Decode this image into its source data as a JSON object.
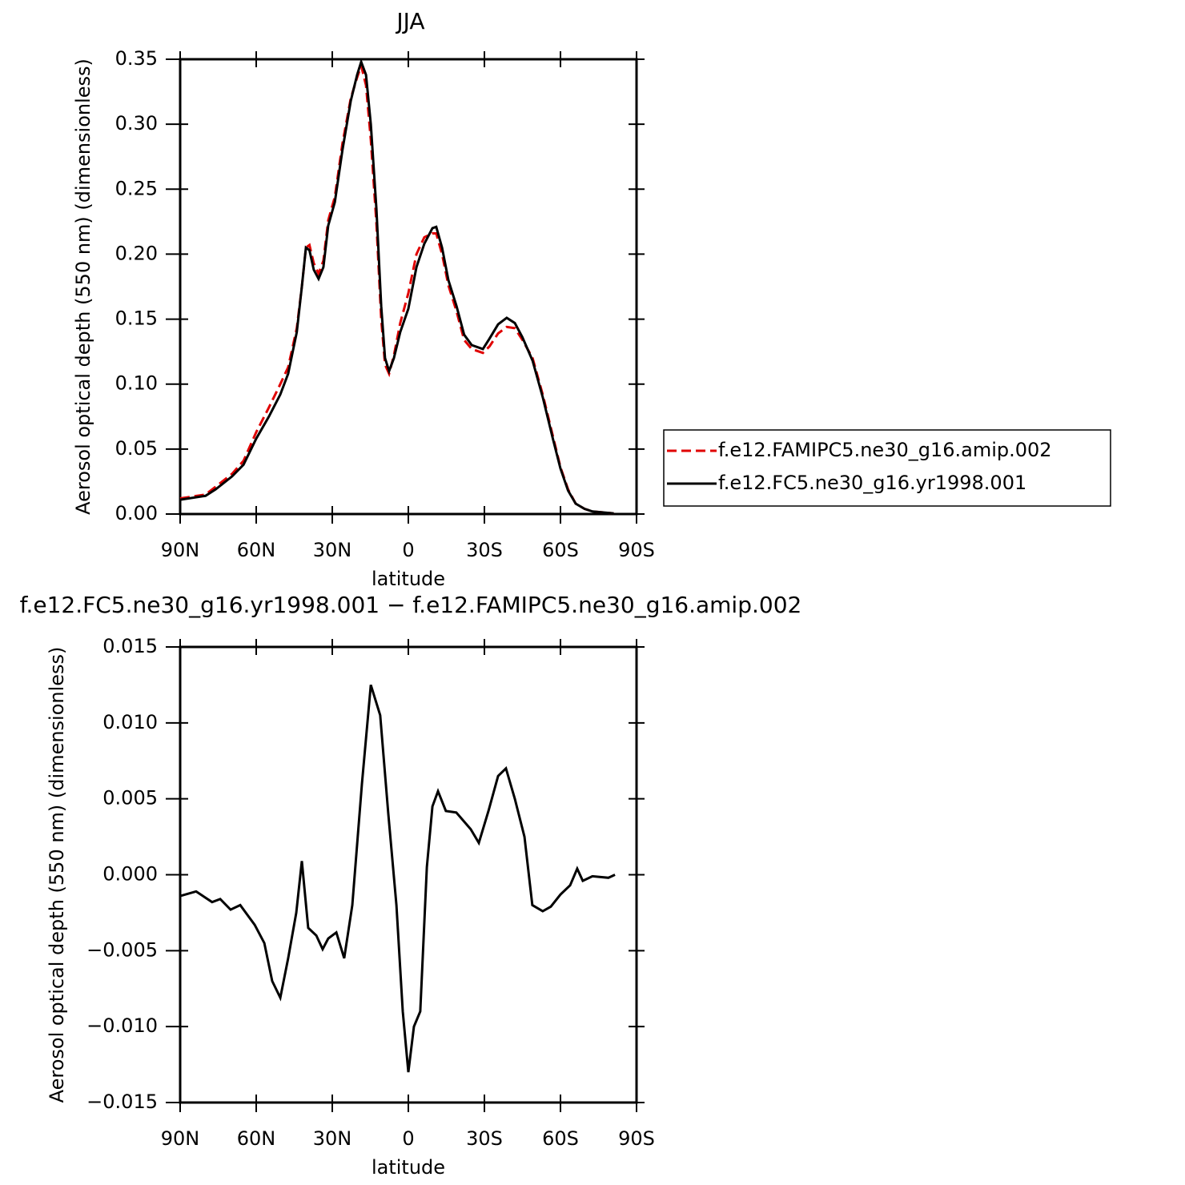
{
  "chart_data": [
    {
      "type": "line",
      "title": "JJA",
      "xlabel": "latitude",
      "ylabel": "Aerosol optical depth (550 nm) (dimensionless)",
      "x": [
        90,
        80,
        76,
        69.5,
        65,
        60,
        55,
        50.5,
        47.4,
        44,
        42,
        40.4,
        39,
        37.3,
        35.4,
        33.5,
        31.6,
        29,
        26,
        22.7,
        20.2,
        18.6,
        16.7,
        14.8,
        12.6,
        10.7,
        9.2,
        7.6,
        5.7,
        3.2,
        0,
        -3.2,
        -6.3,
        -9.5,
        -11,
        -13.3,
        -15.8,
        -19,
        -22,
        -25,
        -29.4,
        -32,
        -35.4,
        -38.8,
        -42,
        -45,
        -49,
        -53,
        -57,
        -60,
        -63,
        -66,
        -69.5,
        -72.6,
        -81
      ],
      "series": [
        {
          "name": "f.e12.FAMIPC5.ne30_g16.amip.002",
          "color": "#e00000",
          "linestyle": "dashed",
          "values": [
            0.012,
            0.015,
            0.021,
            0.031,
            0.041,
            0.063,
            0.082,
            0.1,
            0.113,
            0.143,
            0.175,
            0.205,
            0.207,
            0.193,
            0.185,
            0.195,
            0.226,
            0.244,
            0.285,
            0.32,
            0.336,
            0.345,
            0.33,
            0.288,
            0.224,
            0.15,
            0.115,
            0.108,
            0.122,
            0.147,
            0.17,
            0.2,
            0.213,
            0.216,
            0.216,
            0.2,
            0.176,
            0.156,
            0.134,
            0.127,
            0.124,
            0.129,
            0.139,
            0.144,
            0.143,
            0.134,
            0.12,
            0.092,
            0.06,
            0.036,
            0.019,
            0.008,
            0.004,
            0.002,
            0.0005
          ]
        },
        {
          "name": "f.e12.FC5.ne30_g16.yr1998.001",
          "color": "#000000",
          "linestyle": "solid",
          "values": [
            0.011,
            0.014,
            0.019,
            0.029,
            0.038,
            0.058,
            0.075,
            0.092,
            0.108,
            0.14,
            0.175,
            0.205,
            0.203,
            0.188,
            0.181,
            0.19,
            0.222,
            0.24,
            0.28,
            0.318,
            0.338,
            0.348,
            0.338,
            0.3,
            0.235,
            0.16,
            0.12,
            0.11,
            0.12,
            0.14,
            0.158,
            0.19,
            0.208,
            0.22,
            0.221,
            0.205,
            0.18,
            0.16,
            0.138,
            0.13,
            0.127,
            0.135,
            0.146,
            0.151,
            0.147,
            0.136,
            0.118,
            0.09,
            0.058,
            0.035,
            0.018,
            0.008,
            0.004,
            0.002,
            0.0005
          ]
        }
      ],
      "xlim": [
        90,
        -90
      ],
      "xticks": [
        {
          "value": 90,
          "label": "90N"
        },
        {
          "value": 60,
          "label": "60N"
        },
        {
          "value": 30,
          "label": "30N"
        },
        0,
        {
          "value": -30,
          "label": "30S"
        },
        {
          "value": -60,
          "label": "60S"
        },
        {
          "value": -90,
          "label": "90S"
        }
      ],
      "ylim": [
        0,
        0.35
      ],
      "yticks": [
        {
          "value": 0,
          "label": "0.00"
        },
        0.05,
        {
          "value": 0.1,
          "label": "0.10"
        },
        0.15,
        {
          "value": 0.2,
          "label": "0.20"
        },
        0.25,
        {
          "value": 0.3,
          "label": "0.30"
        },
        0.35
      ],
      "legend": "right"
    },
    {
      "type": "line",
      "title": "f.e12.FC5.ne30_g16.yr1998.001 − f.e12.FAMIPC5.ne30_g16.amip.002",
      "xlabel": "latitude",
      "ylabel": "Aerosol optical depth (550 nm) (dimensionless)",
      "x": [
        90,
        83.7,
        77.4,
        74.2,
        70.1,
        66.3,
        60.6,
        56.8,
        53.7,
        50.5,
        47.4,
        44.2,
        42,
        39.5,
        36.3,
        33.8,
        31.6,
        28.4,
        25.3,
        22.1,
        18.3,
        14.8,
        11.1,
        7.9,
        4.7,
        2.2,
        0,
        -2.2,
        -4.7,
        -7.3,
        -9.5,
        -11.7,
        -14.8,
        -18.9,
        -24.6,
        -27.8,
        -31.6,
        -35.4,
        -38.5,
        -42,
        -45.8,
        -48.9,
        -53,
        -56.2,
        -60,
        -63.8,
        -66.6,
        -68.8,
        -72.6,
        -78.9,
        -81.5
      ],
      "series": [
        {
          "color": "#000000",
          "linestyle": "solid",
          "values": [
            -0.0014,
            -0.0011,
            -0.0018,
            -0.0016,
            -0.0023,
            -0.002,
            -0.0033,
            -0.0045,
            -0.007,
            -0.0081,
            -0.0055,
            -0.0025,
            0.0009,
            -0.0035,
            -0.004,
            -0.0049,
            -0.0042,
            -0.0038,
            -0.0055,
            -0.002,
            0.006,
            0.0125,
            0.0105,
            0.004,
            -0.002,
            -0.009,
            -0.013,
            -0.01,
            -0.009,
            0.0005,
            0.0045,
            0.0055,
            0.0042,
            0.0041,
            0.003,
            0.0021,
            0.0042,
            0.0065,
            0.007,
            0.005,
            0.0025,
            -0.002,
            -0.0024,
            -0.0021,
            -0.0013,
            -0.0007,
            0.0004,
            -0.0004,
            -0.0001,
            -0.0002,
            0
          ]
        }
      ],
      "xlim": [
        90,
        -90
      ],
      "xticks": [
        {
          "value": 90,
          "label": "90N"
        },
        {
          "value": 60,
          "label": "60N"
        },
        {
          "value": 30,
          "label": "30N"
        },
        0,
        {
          "value": -30,
          "label": "30S"
        },
        {
          "value": -60,
          "label": "60S"
        },
        {
          "value": -90,
          "label": "90S"
        }
      ],
      "ylim": [
        -0.015,
        0.015
      ],
      "yticks": [
        {
          "value": -0.015,
          "label": "−0.015"
        },
        {
          "value": -0.01,
          "label": "−0.010"
        },
        {
          "value": -0.005,
          "label": "−0.005"
        },
        {
          "value": 0,
          "label": "0.000"
        },
        0.005,
        {
          "value": 0.01,
          "label": "0.010"
        },
        0.015
      ]
    }
  ]
}
